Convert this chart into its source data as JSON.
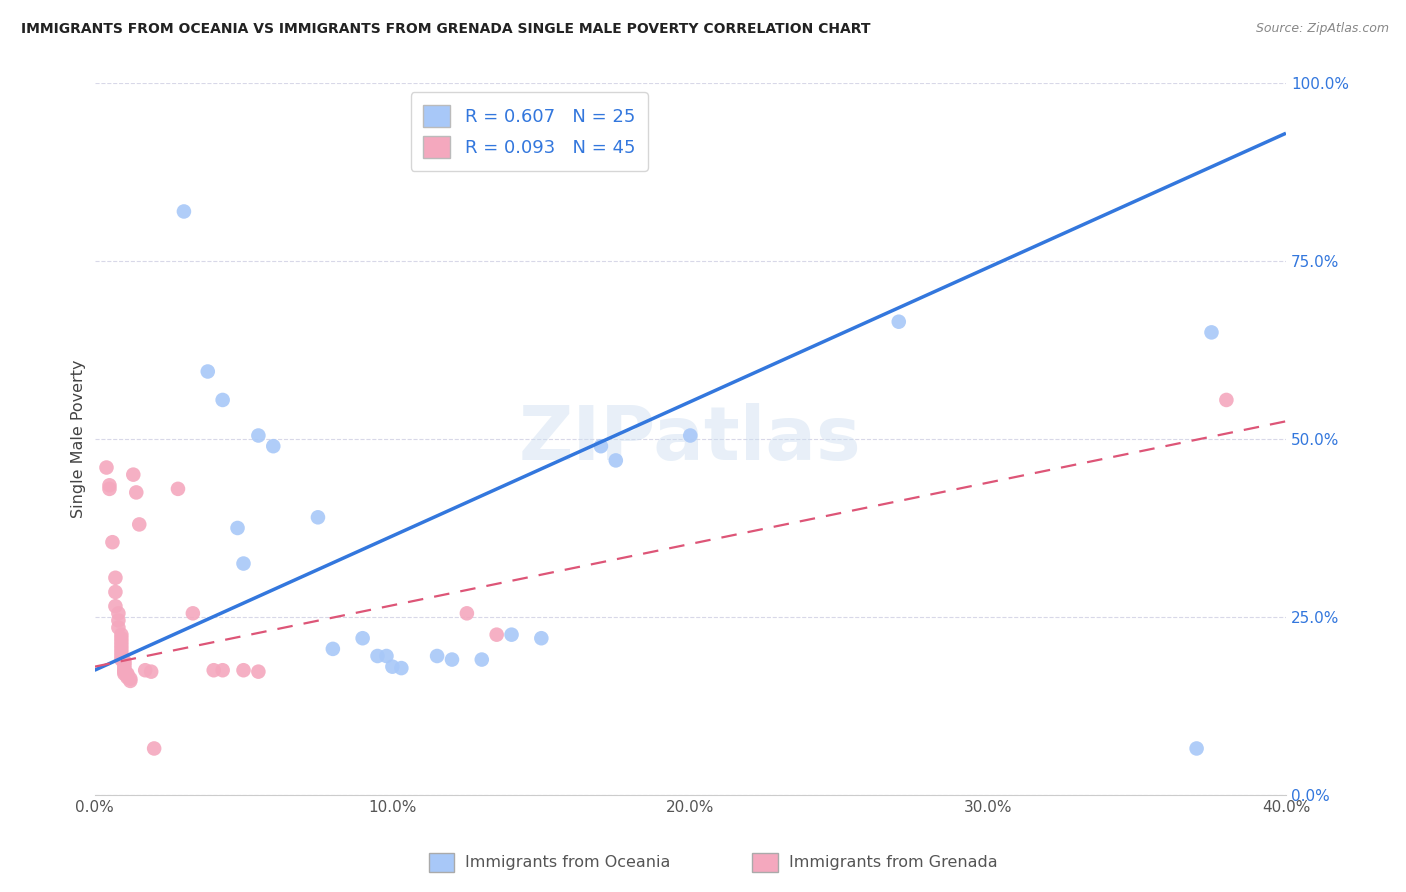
{
  "title": "IMMIGRANTS FROM OCEANIA VS IMMIGRANTS FROM GRENADA SINGLE MALE POVERTY CORRELATION CHART",
  "source": "Source: ZipAtlas.com",
  "ylabel": "Single Male Poverty",
  "xlabel_ticks": [
    "0.0%",
    "10.0%",
    "20.0%",
    "30.0%",
    "40.0%"
  ],
  "xlabel_vals": [
    0.0,
    0.1,
    0.2,
    0.3,
    0.4
  ],
  "ylabel_ticks": [
    "0.0%",
    "25.0%",
    "50.0%",
    "75.0%",
    "100.0%"
  ],
  "ylabel_vals": [
    0.0,
    0.25,
    0.5,
    0.75,
    1.0
  ],
  "xlim": [
    0.0,
    0.4
  ],
  "ylim": [
    0.0,
    1.0
  ],
  "blue_R": 0.607,
  "blue_N": 25,
  "pink_R": 0.093,
  "pink_N": 45,
  "blue_color": "#a8c8f8",
  "pink_color": "#f4a8be",
  "blue_line_color": "#3377dd",
  "pink_line_color": "#dd5577",
  "blue_line_x0": 0.0,
  "blue_line_y0": 0.175,
  "blue_line_x1": 0.4,
  "blue_line_y1": 0.93,
  "pink_line_x0": 0.0,
  "pink_line_y0": 0.18,
  "pink_line_x1": 0.4,
  "pink_line_y1": 0.525,
  "blue_points": [
    [
      0.03,
      0.82
    ],
    [
      0.038,
      0.595
    ],
    [
      0.043,
      0.555
    ],
    [
      0.048,
      0.375
    ],
    [
      0.05,
      0.325
    ],
    [
      0.055,
      0.505
    ],
    [
      0.06,
      0.49
    ],
    [
      0.075,
      0.39
    ],
    [
      0.08,
      0.205
    ],
    [
      0.09,
      0.22
    ],
    [
      0.095,
      0.195
    ],
    [
      0.098,
      0.195
    ],
    [
      0.1,
      0.18
    ],
    [
      0.103,
      0.178
    ],
    [
      0.115,
      0.195
    ],
    [
      0.12,
      0.19
    ],
    [
      0.13,
      0.19
    ],
    [
      0.14,
      0.225
    ],
    [
      0.15,
      0.22
    ],
    [
      0.17,
      0.49
    ],
    [
      0.175,
      0.47
    ],
    [
      0.2,
      0.505
    ],
    [
      0.27,
      0.665
    ],
    [
      0.37,
      0.065
    ],
    [
      0.375,
      0.65
    ]
  ],
  "pink_points": [
    [
      0.004,
      0.46
    ],
    [
      0.005,
      0.435
    ],
    [
      0.005,
      0.43
    ],
    [
      0.006,
      0.355
    ],
    [
      0.007,
      0.305
    ],
    [
      0.007,
      0.285
    ],
    [
      0.007,
      0.265
    ],
    [
      0.008,
      0.255
    ],
    [
      0.008,
      0.245
    ],
    [
      0.008,
      0.235
    ],
    [
      0.009,
      0.225
    ],
    [
      0.009,
      0.22
    ],
    [
      0.009,
      0.215
    ],
    [
      0.009,
      0.21
    ],
    [
      0.009,
      0.205
    ],
    [
      0.009,
      0.2
    ],
    [
      0.009,
      0.195
    ],
    [
      0.009,
      0.19
    ],
    [
      0.01,
      0.188
    ],
    [
      0.01,
      0.185
    ],
    [
      0.01,
      0.182
    ],
    [
      0.01,
      0.178
    ],
    [
      0.01,
      0.175
    ],
    [
      0.01,
      0.173
    ],
    [
      0.01,
      0.17
    ],
    [
      0.011,
      0.17
    ],
    [
      0.011,
      0.168
    ],
    [
      0.011,
      0.165
    ],
    [
      0.012,
      0.163
    ],
    [
      0.012,
      0.16
    ],
    [
      0.013,
      0.45
    ],
    [
      0.014,
      0.425
    ],
    [
      0.015,
      0.38
    ],
    [
      0.017,
      0.175
    ],
    [
      0.019,
      0.173
    ],
    [
      0.02,
      0.065
    ],
    [
      0.028,
      0.43
    ],
    [
      0.033,
      0.255
    ],
    [
      0.04,
      0.175
    ],
    [
      0.043,
      0.175
    ],
    [
      0.05,
      0.175
    ],
    [
      0.055,
      0.173
    ],
    [
      0.125,
      0.255
    ],
    [
      0.135,
      0.225
    ],
    [
      0.38,
      0.555
    ]
  ],
  "watermark": "ZIPatlas",
  "background_color": "#ffffff",
  "grid_color": "#d8d8e8"
}
